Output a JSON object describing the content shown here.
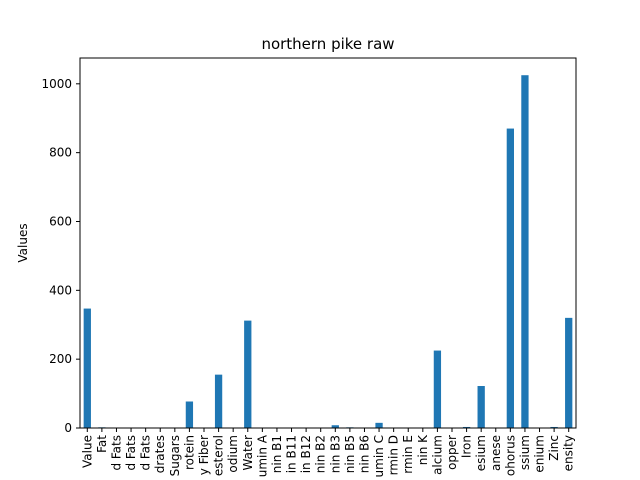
{
  "chart_data": {
    "type": "bar",
    "title": "northern pike raw",
    "xlabel": "",
    "ylabel": "Values",
    "categories": [
      "Value",
      "Fat",
      "d Fats",
      "d Fats",
      "d Fats",
      "drates",
      "Sugars",
      "rotein",
      "y Fiber",
      "esterol",
      "odium",
      "Water",
      "umin A",
      "nin B1",
      "in B11",
      "in B12",
      "nin B2",
      "nin B3",
      "nin B5",
      "nin B6",
      "umin C",
      "rmin D",
      "rmin E",
      "nin K",
      "alcium",
      "opper",
      "Iron",
      "esium",
      "anese",
      "ohorus",
      "ssium",
      "enium",
      "Zinc",
      "ensity"
    ],
    "values": [
      347,
      2,
      0,
      0,
      0,
      0,
      0,
      77,
      0,
      155,
      0,
      312,
      0,
      0,
      0,
      0,
      0,
      8,
      2,
      1,
      15,
      0,
      0,
      0,
      225,
      0,
      3,
      122,
      0,
      870,
      1025,
      0,
      3,
      320
    ],
    "ylim": [
      0,
      1075
    ],
    "yticks": [
      0,
      200,
      400,
      600,
      800,
      1000
    ],
    "ytick_labels": [
      "0",
      "200",
      "400",
      "600",
      "800",
      "1000"
    ],
    "bar_color": "#1f77b4",
    "grid": false,
    "legend": "none"
  }
}
